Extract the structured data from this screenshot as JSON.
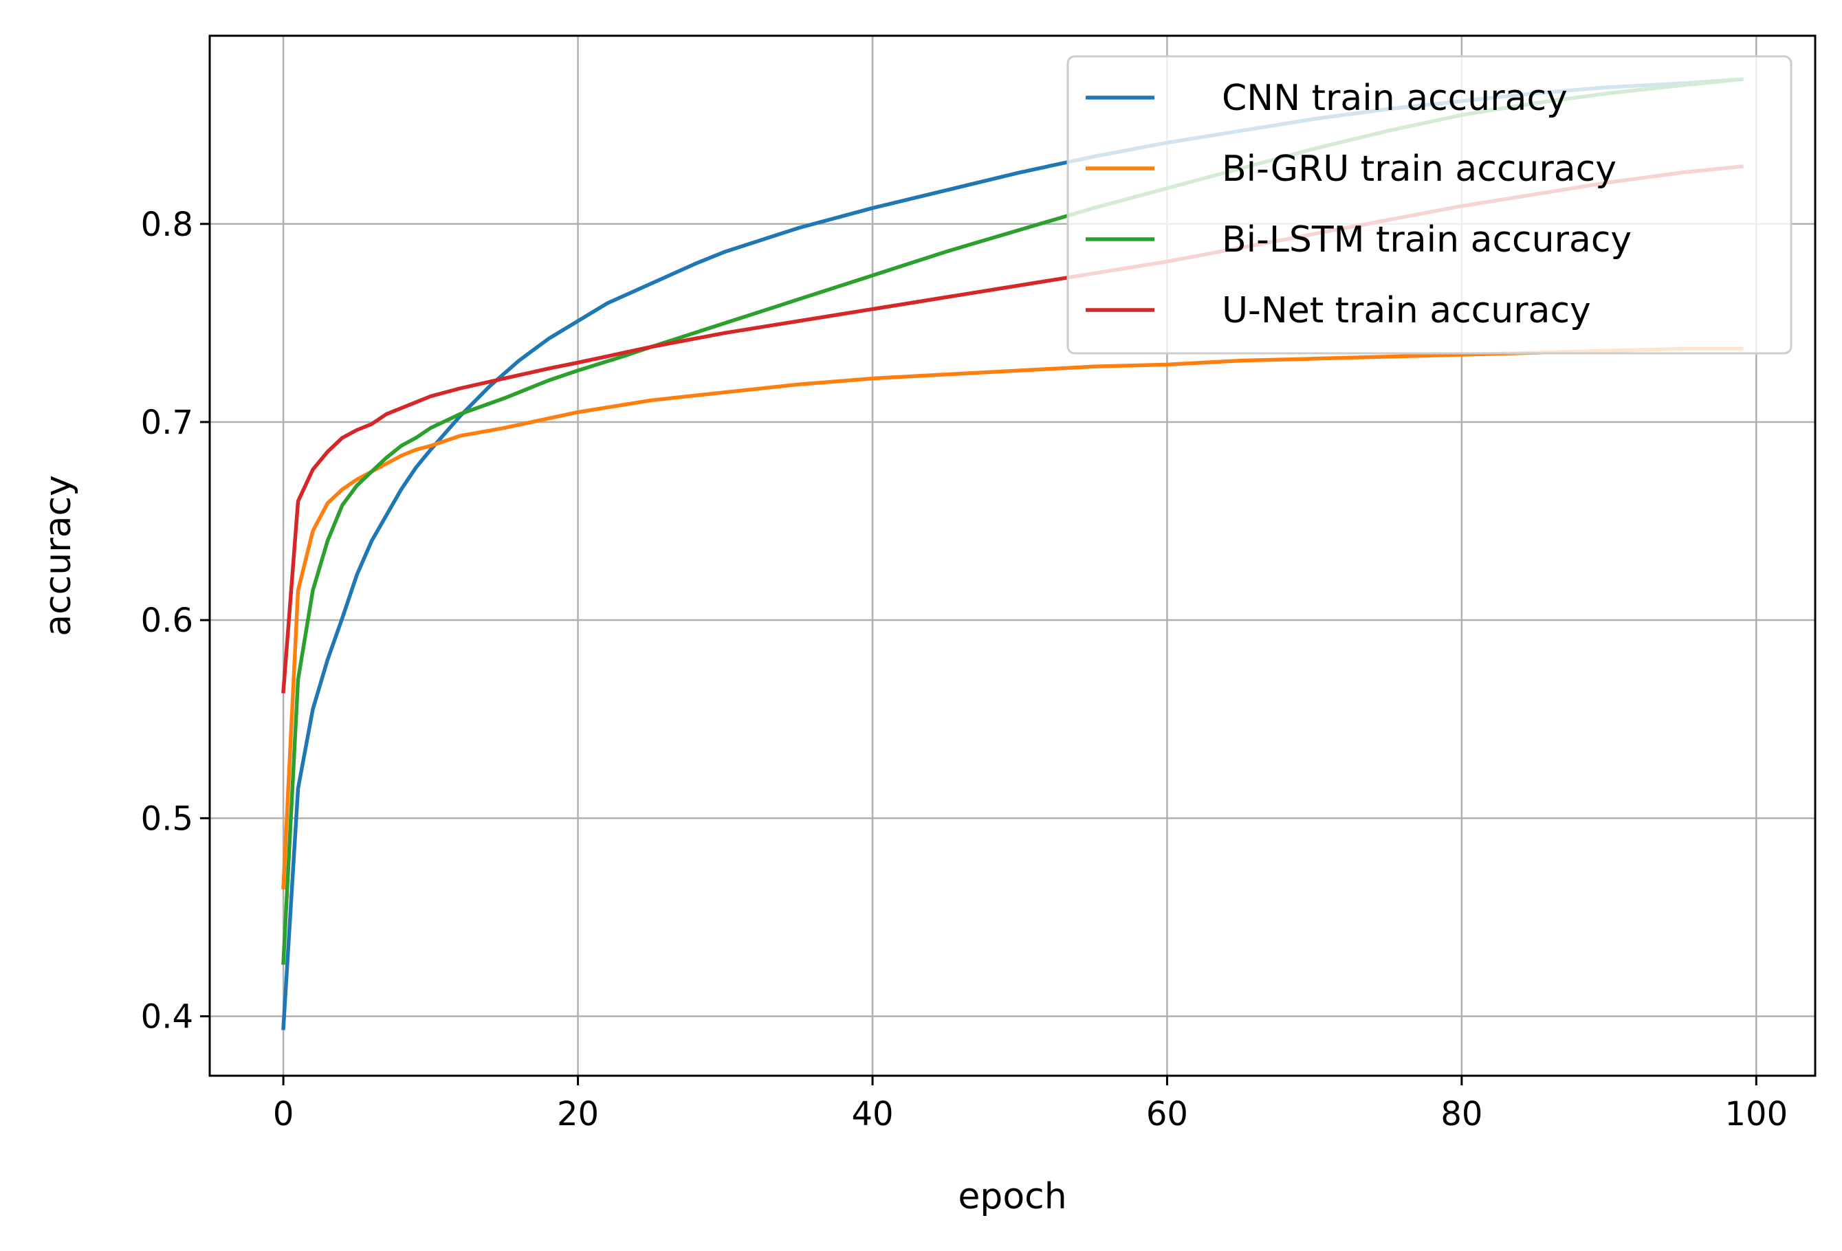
{
  "chart_data": {
    "type": "line",
    "xlabel": "epoch",
    "ylabel": "accuracy",
    "xlim": [
      -5,
      104
    ],
    "ylim": [
      0.37,
      0.895
    ],
    "xticks": [
      0,
      20,
      40,
      60,
      80,
      100
    ],
    "yticks": [
      0.4,
      0.5,
      0.6,
      0.7,
      0.8
    ],
    "xtick_labels": [
      "0",
      "20",
      "40",
      "60",
      "80",
      "100"
    ],
    "ytick_labels": [
      "0.4",
      "0.5",
      "0.6",
      "0.7",
      "0.8"
    ],
    "grid": true,
    "legend_position": "top-right",
    "series": [
      {
        "name": "CNN train accuracy",
        "color": "#1f77b4",
        "points": [
          [
            0,
            0.394
          ],
          [
            1,
            0.515
          ],
          [
            2,
            0.555
          ],
          [
            3,
            0.58
          ],
          [
            4,
            0.601
          ],
          [
            5,
            0.623
          ],
          [
            6,
            0.64
          ],
          [
            7,
            0.653
          ],
          [
            8,
            0.666
          ],
          [
            9,
            0.677
          ],
          [
            10,
            0.686
          ],
          [
            12,
            0.703
          ],
          [
            14,
            0.718
          ],
          [
            16,
            0.731
          ],
          [
            18,
            0.742
          ],
          [
            20,
            0.751
          ],
          [
            22,
            0.76
          ],
          [
            25,
            0.77
          ],
          [
            28,
            0.78
          ],
          [
            30,
            0.786
          ],
          [
            35,
            0.798
          ],
          [
            40,
            0.808
          ],
          [
            45,
            0.817
          ],
          [
            50,
            0.826
          ],
          [
            55,
            0.834
          ],
          [
            60,
            0.841
          ],
          [
            65,
            0.847
          ],
          [
            70,
            0.853
          ],
          [
            75,
            0.858
          ],
          [
            80,
            0.862
          ],
          [
            85,
            0.866
          ],
          [
            90,
            0.869
          ],
          [
            95,
            0.871
          ],
          [
            99,
            0.873
          ]
        ]
      },
      {
        "name": "Bi-GRU train accuracy",
        "color": "#ff7f0e",
        "points": [
          [
            0,
            0.465
          ],
          [
            1,
            0.615
          ],
          [
            2,
            0.645
          ],
          [
            3,
            0.659
          ],
          [
            4,
            0.666
          ],
          [
            5,
            0.671
          ],
          [
            6,
            0.675
          ],
          [
            7,
            0.679
          ],
          [
            8,
            0.683
          ],
          [
            9,
            0.686
          ],
          [
            10,
            0.688
          ],
          [
            12,
            0.693
          ],
          [
            15,
            0.697
          ],
          [
            20,
            0.705
          ],
          [
            25,
            0.711
          ],
          [
            30,
            0.715
          ],
          [
            35,
            0.719
          ],
          [
            40,
            0.722
          ],
          [
            45,
            0.724
          ],
          [
            50,
            0.726
          ],
          [
            55,
            0.728
          ],
          [
            60,
            0.729
          ],
          [
            65,
            0.731
          ],
          [
            70,
            0.732
          ],
          [
            75,
            0.733
          ],
          [
            80,
            0.734
          ],
          [
            85,
            0.735
          ],
          [
            90,
            0.736
          ],
          [
            95,
            0.737
          ],
          [
            99,
            0.737
          ]
        ]
      },
      {
        "name": "Bi-LSTM train accuracy",
        "color": "#2ca02c",
        "points": [
          [
            0,
            0.427
          ],
          [
            1,
            0.57
          ],
          [
            2,
            0.615
          ],
          [
            3,
            0.64
          ],
          [
            4,
            0.658
          ],
          [
            5,
            0.668
          ],
          [
            6,
            0.675
          ],
          [
            7,
            0.682
          ],
          [
            8,
            0.688
          ],
          [
            9,
            0.692
          ],
          [
            10,
            0.697
          ],
          [
            12,
            0.704
          ],
          [
            15,
            0.712
          ],
          [
            18,
            0.721
          ],
          [
            20,
            0.726
          ],
          [
            23,
            0.733
          ],
          [
            25,
            0.738
          ],
          [
            30,
            0.75
          ],
          [
            35,
            0.762
          ],
          [
            40,
            0.774
          ],
          [
            45,
            0.786
          ],
          [
            50,
            0.797
          ],
          [
            55,
            0.808
          ],
          [
            60,
            0.818
          ],
          [
            65,
            0.828
          ],
          [
            70,
            0.838
          ],
          [
            75,
            0.847
          ],
          [
            80,
            0.855
          ],
          [
            85,
            0.861
          ],
          [
            90,
            0.866
          ],
          [
            95,
            0.87
          ],
          [
            99,
            0.873
          ]
        ]
      },
      {
        "name": "U-Net train accuracy",
        "color": "#d62728",
        "points": [
          [
            0,
            0.564
          ],
          [
            1,
            0.66
          ],
          [
            2,
            0.676
          ],
          [
            3,
            0.685
          ],
          [
            4,
            0.692
          ],
          [
            5,
            0.696
          ],
          [
            6,
            0.699
          ],
          [
            7,
            0.704
          ],
          [
            8,
            0.707
          ],
          [
            9,
            0.71
          ],
          [
            10,
            0.713
          ],
          [
            12,
            0.717
          ],
          [
            15,
            0.722
          ],
          [
            18,
            0.727
          ],
          [
            20,
            0.73
          ],
          [
            25,
            0.738
          ],
          [
            30,
            0.745
          ],
          [
            35,
            0.751
          ],
          [
            40,
            0.757
          ],
          [
            45,
            0.763
          ],
          [
            50,
            0.769
          ],
          [
            55,
            0.775
          ],
          [
            60,
            0.781
          ],
          [
            65,
            0.788
          ],
          [
            70,
            0.795
          ],
          [
            75,
            0.802
          ],
          [
            80,
            0.809
          ],
          [
            85,
            0.815
          ],
          [
            90,
            0.821
          ],
          [
            95,
            0.826
          ],
          [
            99,
            0.829
          ]
        ]
      }
    ]
  }
}
